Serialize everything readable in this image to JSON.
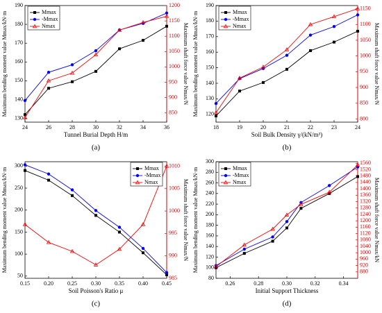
{
  "chart_data": [
    {
      "type": "line",
      "label": "(a)",
      "x_label": "Tunnel Burial Depth H/m",
      "y_label": "Maximum bending moment value Mmax/kN·m",
      "y2_label": "Maximum shaft force value Nmax/N",
      "x": [
        24,
        26,
        28,
        30,
        32,
        34,
        36
      ],
      "xlim": [
        24,
        36
      ],
      "xticks": [
        24,
        26,
        28,
        30,
        32,
        34,
        36
      ],
      "ylim": [
        128,
        190
      ],
      "yticks": [
        130,
        140,
        150,
        160,
        170,
        180,
        190
      ],
      "y2lim": [
        820,
        1200
      ],
      "y2ticks": [
        850,
        900,
        950,
        1000,
        1050,
        1100,
        1150,
        1200
      ],
      "legend": "upper left",
      "series": [
        {
          "name": "Mmax",
          "color": "#000000",
          "marker": "square",
          "values": [
            132,
            146,
            149.5,
            155,
            167,
            171.5,
            179
          ]
        },
        {
          "name": "-Mmax",
          "color": "#0000ff",
          "marker": "circle",
          "values": [
            139.5,
            154.5,
            158.5,
            166,
            177,
            180.5,
            186
          ]
        },
        {
          "name": "Nmax",
          "color": "#ff0000",
          "marker": "triangle",
          "axis": "y2",
          "values": [
            835,
            955,
            980,
            1040,
            1120,
            1145,
            1165
          ]
        }
      ]
    },
    {
      "type": "line",
      "label": "(b)",
      "x_label": "Soil Bulk Density γ/(kN/m³)",
      "y_label": "Maximum bending moment value Mmax/kN·m",
      "y2_label": "Maximum shaft force value Nmax/N",
      "x": [
        18,
        19,
        20,
        21,
        22,
        23,
        24
      ],
      "xlim": [
        18,
        24
      ],
      "xticks": [
        18,
        19,
        20,
        21,
        22,
        23,
        24
      ],
      "ylim": [
        115,
        190
      ],
      "yticks": [
        120,
        130,
        140,
        150,
        160,
        170,
        180,
        190
      ],
      "y2lim": [
        790,
        1160
      ],
      "y2ticks": [
        800,
        850,
        900,
        950,
        1000,
        1050,
        1100,
        1150
      ],
      "legend": "upper left",
      "series": [
        {
          "name": "Mmax",
          "color": "#000000",
          "marker": "square",
          "values": [
            119,
            135,
            140.5,
            149,
            161,
            166.5,
            173.5
          ]
        },
        {
          "name": "-Mmax",
          "color": "#0000ff",
          "marker": "circle",
          "values": [
            127,
            143,
            149.5,
            158,
            171,
            176.5,
            184
          ]
        },
        {
          "name": "Nmax",
          "color": "#ff0000",
          "marker": "triangle",
          "axis": "y2",
          "values": [
            820,
            930,
            965,
            1020,
            1100,
            1125,
            1150
          ]
        }
      ]
    },
    {
      "type": "line",
      "label": "(c)",
      "x_label": "Soil Poisson's Ratio μ",
      "y_label": "Maximum bending moment value Mmax/kN·m",
      "y2_label": "Maximum shaft force value Nmax/N",
      "x": [
        0.15,
        0.2,
        0.25,
        0.3,
        0.35,
        0.4,
        0.45
      ],
      "xlim": [
        0.15,
        0.45
      ],
      "xticks": [
        0.15,
        {
          "value": 0.2,
          "label": "0.20"
        },
        0.25,
        {
          "value": 0.3,
          "label": "0.30"
        },
        0.35,
        {
          "value": 0.4,
          "label": "0.40"
        },
        0.45
      ],
      "ylim": [
        45,
        310
      ],
      "yticks": [
        50,
        100,
        150,
        200,
        250,
        300
      ],
      "y2lim": [
        985,
        1011
      ],
      "y2ticks": [
        985,
        990,
        995,
        1000,
        1005,
        1010
      ],
      "legend": "upper right",
      "series": [
        {
          "name": "Mmax",
          "color": "#000000",
          "marker": "square",
          "values": [
            290,
            268,
            233,
            188,
            150,
            103,
            53
          ]
        },
        {
          "name": "-Mmax",
          "color": "#0000ff",
          "marker": "circle",
          "values": [
            303,
            282,
            246,
            199,
            161,
            113,
            58
          ]
        },
        {
          "name": "Nmax",
          "color": "#ff0000",
          "marker": "triangle",
          "axis": "y2",
          "values": [
            997,
            993,
            991,
            988,
            991.5,
            997,
            1010
          ]
        }
      ]
    },
    {
      "type": "line",
      "label": "(d)",
      "x_label": "Initial Support Thickness",
      "y_label": "Maximum bending moment value Mmax/kN·m",
      "y2_label": "Maximum shaft force value Nmax/kN",
      "x": [
        0.25,
        0.27,
        0.29,
        0.3,
        0.31,
        0.33,
        0.35
      ],
      "xlim": [
        0.25,
        0.35
      ],
      "xticks": [
        0.26,
        0.28,
        {
          "value": 0.3,
          "label": "0.30"
        },
        0.32,
        0.34
      ],
      "ylim": [
        80,
        300
      ],
      "yticks": [
        80,
        100,
        120,
        140,
        160,
        180,
        200,
        220,
        240,
        260,
        280,
        300
      ],
      "y2lim": [
        840,
        1570
      ],
      "y2ticks": [
        880,
        920,
        960,
        1000,
        1040,
        1080,
        1120,
        1160,
        1200,
        1240,
        1280,
        1320,
        1360,
        1400,
        1440,
        1480,
        1520,
        1560
      ],
      "legend": "upper left",
      "series": [
        {
          "name": "Mmax",
          "color": "#000000",
          "marker": "square",
          "values": [
            100,
            127,
            150,
            175,
            212,
            240,
            272
          ]
        },
        {
          "name": "-Mmax",
          "color": "#0000ff",
          "marker": "circle",
          "values": [
            104,
            135,
            158,
            187,
            223,
            255,
            290
          ]
        },
        {
          "name": "Nmax",
          "color": "#ff0000",
          "marker": "triangle",
          "axis": "y2",
          "values": [
            913,
            1049,
            1148,
            1237,
            1303,
            1379,
            1550
          ]
        }
      ]
    }
  ]
}
